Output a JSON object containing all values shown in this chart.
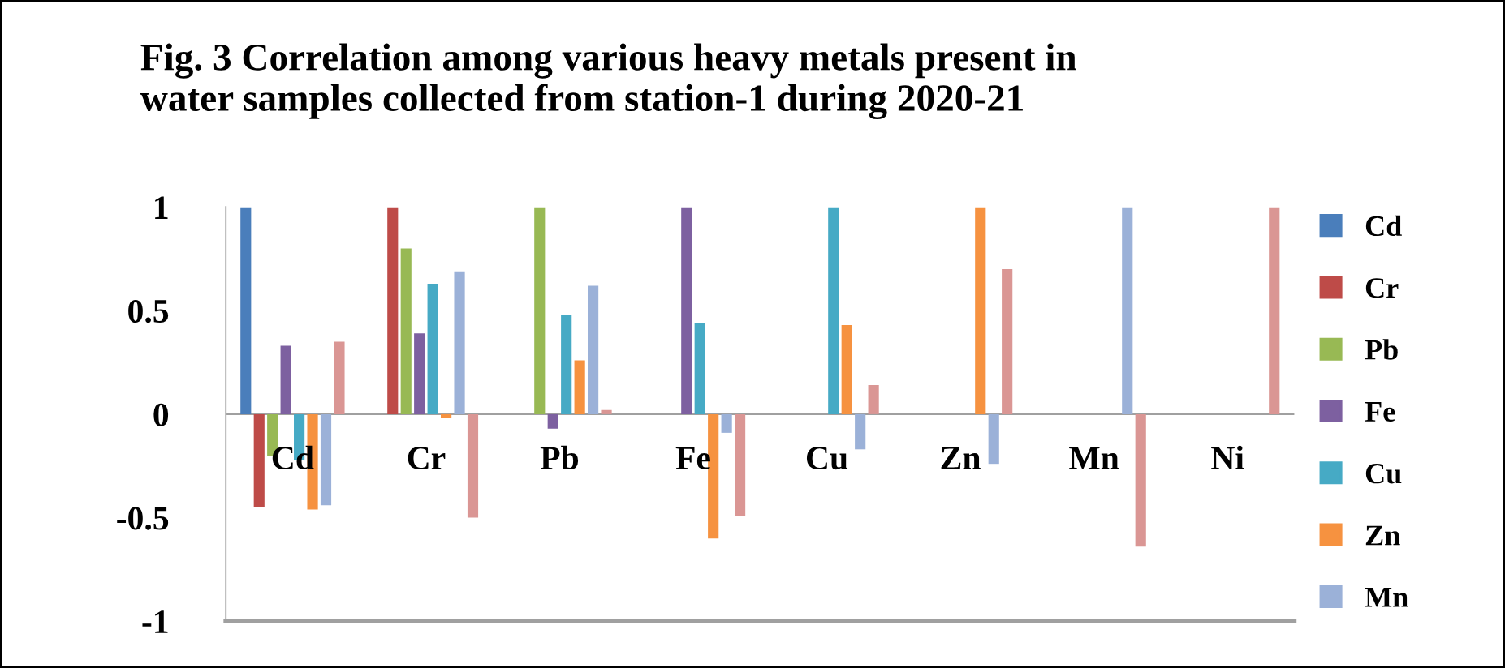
{
  "chart_data": {
    "type": "bar",
    "title": "Fig. 3 Correlation among various heavy metals present in\nwater samples collected from station-1 during 2020-21",
    "categories": [
      "Cd",
      "Cr",
      "Pb",
      "Fe",
      "Cu",
      "Zn",
      "Mn",
      "Ni"
    ],
    "series": [
      {
        "name": "Cd",
        "color": "#4a7ebb",
        "values": [
          1,
          null,
          null,
          null,
          null,
          null,
          null,
          null
        ]
      },
      {
        "name": "Cr",
        "color": "#be4b48",
        "values": [
          -0.45,
          1,
          null,
          null,
          null,
          null,
          null,
          null
        ]
      },
      {
        "name": "Pb",
        "color": "#98b954",
        "values": [
          -0.2,
          0.8,
          1,
          null,
          null,
          null,
          null,
          null
        ]
      },
      {
        "name": "Fe",
        "color": "#7d60a0",
        "values": [
          0.33,
          0.39,
          -0.07,
          1,
          null,
          null,
          null,
          null
        ]
      },
      {
        "name": "Cu",
        "color": "#46aac5",
        "values": [
          -0.22,
          0.63,
          0.48,
          0.44,
          1,
          null,
          null,
          null
        ]
      },
      {
        "name": "Zn",
        "color": "#f69240",
        "values": [
          -0.46,
          -0.02,
          0.26,
          -0.6,
          0.43,
          1,
          null,
          null
        ]
      },
      {
        "name": "Mn",
        "color": "#9bb1d8",
        "values": [
          -0.44,
          0.69,
          0.62,
          -0.09,
          -0.17,
          -0.24,
          1,
          null
        ]
      },
      {
        "color": "#da9694",
        "values": [
          0.35,
          -0.5,
          0.02,
          -0.49,
          0.14,
          0.7,
          -0.64,
          1
        ]
      }
    ],
    "ylim": [
      -1,
      1
    ],
    "yticks": [
      -1,
      -0.5,
      0,
      0.5,
      1
    ],
    "grid": false,
    "legend": "right"
  }
}
